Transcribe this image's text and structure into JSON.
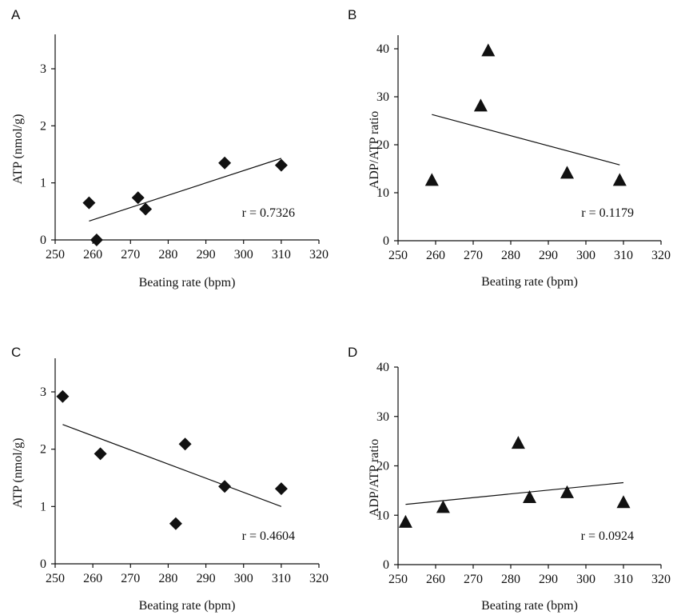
{
  "chart_data": [
    {
      "panel": "A",
      "type": "scatter",
      "marker": "diamond",
      "xlabel": "Beating rate (bpm)",
      "ylabel": "ATP (nmol/g)",
      "xlim": [
        250,
        320
      ],
      "ylim": [
        0,
        3.5
      ],
      "xticks": [
        250,
        260,
        270,
        280,
        290,
        300,
        310,
        320
      ],
      "yticks": [
        0,
        1,
        2,
        3
      ],
      "points": [
        {
          "x": 259,
          "y": 0.65
        },
        {
          "x": 261,
          "y": 0.0
        },
        {
          "x": 272,
          "y": 0.74
        },
        {
          "x": 274,
          "y": 0.54
        },
        {
          "x": 295,
          "y": 1.35
        },
        {
          "x": 310,
          "y": 1.31
        }
      ],
      "fit_line": {
        "x": [
          259,
          310
        ],
        "y": [
          0.33,
          1.43
        ]
      },
      "annotation": "r = 0.7326"
    },
    {
      "panel": "B",
      "type": "scatter",
      "marker": "triangle",
      "xlabel": "Beating rate (bpm)",
      "ylabel": "ADP/ATP ratio",
      "xlim": [
        250,
        320
      ],
      "ylim": [
        0,
        42
      ],
      "xticks": [
        250,
        260,
        270,
        280,
        290,
        300,
        310,
        320
      ],
      "yticks": [
        0,
        10,
        20,
        30,
        40
      ],
      "points": [
        {
          "x": 259,
          "y": 12.5
        },
        {
          "x": 272,
          "y": 28
        },
        {
          "x": 274,
          "y": 39.5
        },
        {
          "x": 295,
          "y": 14
        },
        {
          "x": 309,
          "y": 12.5
        }
      ],
      "fit_line": {
        "x": [
          259,
          309
        ],
        "y": [
          26.3,
          15.8
        ]
      },
      "annotation": "r = 0.1179"
    },
    {
      "panel": "C",
      "type": "scatter",
      "marker": "diamond",
      "xlabel": "Beating rate (bpm)",
      "ylabel": "ATP (nmol/g)",
      "xlim": [
        250,
        320
      ],
      "ylim": [
        0,
        3.5
      ],
      "xticks": [
        250,
        260,
        270,
        280,
        290,
        300,
        310,
        320
      ],
      "yticks": [
        0,
        1,
        2,
        3
      ],
      "points": [
        {
          "x": 252,
          "y": 2.92
        },
        {
          "x": 262,
          "y": 1.92
        },
        {
          "x": 282,
          "y": 0.7
        },
        {
          "x": 284.5,
          "y": 2.09
        },
        {
          "x": 295,
          "y": 1.35
        },
        {
          "x": 310,
          "y": 1.31
        }
      ],
      "fit_line": {
        "x": [
          252,
          310
        ],
        "y": [
          2.43,
          1.0
        ]
      },
      "annotation": "r = 0.4604"
    },
    {
      "panel": "D",
      "type": "scatter",
      "marker": "triangle",
      "xlabel": "Beating rate (bpm)",
      "ylabel": "ADP/ATP ratio",
      "xlim": [
        250,
        320
      ],
      "ylim": [
        0,
        40
      ],
      "xticks": [
        250,
        260,
        270,
        280,
        290,
        300,
        310,
        320
      ],
      "yticks": [
        0,
        10,
        20,
        30,
        40
      ],
      "points": [
        {
          "x": 252,
          "y": 8.5
        },
        {
          "x": 262,
          "y": 11.5
        },
        {
          "x": 282,
          "y": 24.5
        },
        {
          "x": 285,
          "y": 13.5
        },
        {
          "x": 295,
          "y": 14.5
        },
        {
          "x": 310,
          "y": 12.5
        }
      ],
      "fit_line": {
        "x": [
          252,
          310
        ],
        "y": [
          12.2,
          16.6
        ]
      },
      "annotation": "r = 0.0924"
    }
  ]
}
